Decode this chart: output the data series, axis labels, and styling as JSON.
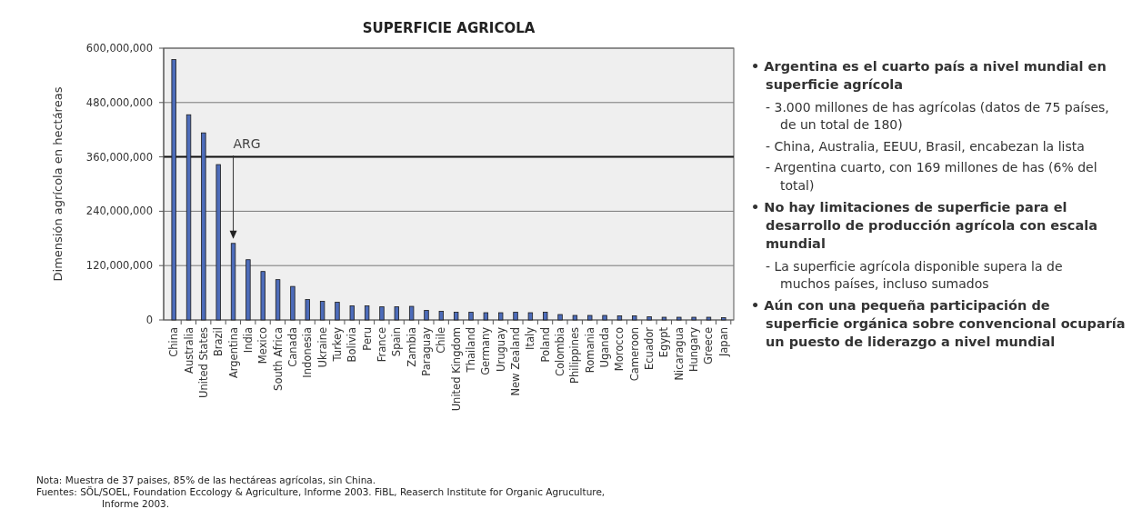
{
  "chart_data": {
    "type": "bar",
    "title": "SUPERFICIE AGRICOLA",
    "ylabel": "Dimensión agrícola en hectáreas",
    "categories": [
      "China",
      "Australia",
      "United States",
      "Brazil",
      "Argentina",
      "India",
      "Mexico",
      "South Africa",
      "Canada",
      "Indonesia",
      "Ukraine",
      "Turkey",
      "Bolivia",
      "Peru",
      "France",
      "Spain",
      "Zambia",
      "Paraguay",
      "Chile",
      "United Kingdom",
      "Thailand",
      "Germany",
      "Uruguay",
      "New Zealand",
      "Italy",
      "Poland",
      "Colombia",
      "Philippines",
      "Romania",
      "Uganda",
      "Morocco",
      "Cameroon",
      "Ecuador",
      "Egypt",
      "Nicaragua",
      "Hungary",
      "Greece",
      "Japan"
    ],
    "values": [
      575000000,
      453000000,
      413000000,
      343000000,
      169000000,
      133000000,
      107000000,
      89000000,
      74000000,
      45000000,
      41000000,
      39000000,
      31000000,
      31000000,
      29000000,
      29000000,
      30000000,
      21000000,
      19000000,
      17000000,
      17000000,
      16000000,
      16000000,
      17000000,
      16000000,
      17000000,
      12000000,
      10000000,
      10000000,
      10000000,
      9000000,
      9000000,
      7000000,
      6000000,
      6000000,
      6000000,
      6000000,
      5000000
    ],
    "color": "#4d6cba",
    "ylim": [
      0,
      600000000
    ],
    "yticks": [
      0,
      {
        "value": 120000000,
        "label": "120,000,000"
      },
      {
        "value": 240000000,
        "label": "240,000,000"
      },
      {
        "value": 360000000,
        "label": "360,000,000"
      },
      {
        "value": 480000000,
        "label": "480,000,000"
      },
      {
        "value": 600000000,
        "label": "600,000,000"
      }
    ],
    "grid": "y",
    "ref_lines": [
      {
        "axis": "y",
        "value": 360000000,
        "color": "#111111"
      }
    ],
    "annotations": [
      {
        "text": "ARG",
        "x": "Argentina",
        "y": 169000000
      },
      "• Argentina es el cuarto país a nivel mundial en superficie agrícola",
      "- 3.000 millones de has agrícolas (datos de 75 países, de un total de 180)",
      "- China, Australia, EEUU, Brasil, encabezan la lista",
      "- Argentina cuarto, con 169 millones de has (6% del total)",
      "• No hay limitaciones de superficie para el desarrollo de producción agrícola con escala mundial",
      "- La superficie agrícola disponible supera la de muchos países, incluso sumados",
      "• Aún con una pequeña participación de superficie orgánica sobre convencional ocuparía un puesto de liderazgo a nivel mundial",
      "Nota: Muestra de 37 paises, 85% de las hectáreas agrícolas, sin China.",
      "Fuentes: SÖL/SOEL, Foundation Eccology & Agriculture, Informe 2003. FiBL, Reaserch Institute for Organic Agruculture, Informe 2003."
    ]
  }
}
